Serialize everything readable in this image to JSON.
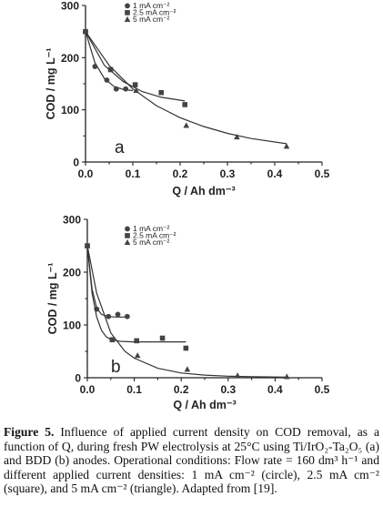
{
  "chart_data": [
    {
      "type": "scatter",
      "panel_label": "a",
      "xlabel": "Q / Ah dm⁻³",
      "ylabel": "COD / mg L⁻¹",
      "xlim": [
        0.0,
        0.5
      ],
      "ylim": [
        0,
        300
      ],
      "xticks": [
        "0.0",
        "0.1",
        "0.2",
        "0.3",
        "0.4",
        "0.5"
      ],
      "yticks": [
        "0",
        "100",
        "200",
        "300"
      ],
      "grid": false,
      "legend_position": "top-center",
      "series": [
        {
          "name": "1 mA cm⁻²",
          "marker": "circle",
          "x": [
            0.0,
            0.02,
            0.045,
            0.065,
            0.085
          ],
          "y": [
            250,
            183,
            157,
            140,
            140
          ],
          "fit_x": [
            0.0,
            0.02,
            0.04,
            0.06,
            0.08,
            0.1
          ],
          "fit_y": [
            250,
            190,
            160,
            145,
            139,
            137
          ]
        },
        {
          "name": "2.5 mA cm⁻²",
          "marker": "square",
          "x": [
            0.0,
            0.053,
            0.105,
            0.16,
            0.21
          ],
          "y": [
            250,
            177,
            148,
            133,
            110
          ],
          "fit_x": [
            0.0,
            0.04,
            0.08,
            0.12,
            0.16,
            0.21
          ],
          "fit_y": [
            250,
            185,
            154,
            135,
            124,
            117
          ]
        },
        {
          "name": "5 mA cm⁻²",
          "marker": "triangle",
          "x": [
            0.0,
            0.107,
            0.213,
            0.32,
            0.425
          ],
          "y": [
            250,
            137,
            70,
            48,
            30
          ],
          "fit_x": [
            0.0,
            0.05,
            0.1,
            0.15,
            0.2,
            0.25,
            0.3,
            0.35,
            0.425
          ],
          "fit_y": [
            250,
            185,
            140,
            108,
            85,
            68,
            55,
            45,
            35
          ]
        }
      ]
    },
    {
      "type": "scatter",
      "panel_label": "b",
      "xlabel": "Q / Ah dm⁻³",
      "ylabel": "COD / mg L⁻¹",
      "xlim": [
        0.0,
        0.5
      ],
      "ylim": [
        0,
        300
      ],
      "xticks": [
        "0.0",
        "0.1",
        "0.2",
        "0.3",
        "0.4",
        "0.5"
      ],
      "yticks": [
        "0",
        "100",
        "200",
        "300"
      ],
      "grid": false,
      "legend_position": "top-center",
      "series": [
        {
          "name": "1 mA cm⁻²",
          "marker": "circle",
          "x": [
            0.0,
            0.02,
            0.045,
            0.065,
            0.085
          ],
          "y": [
            250,
            130,
            116,
            120,
            116
          ],
          "fit_x": [
            0.0,
            0.01,
            0.02,
            0.03,
            0.045,
            0.06,
            0.085
          ],
          "fit_y": [
            250,
            168,
            132,
            120,
            116,
            115,
            115
          ]
        },
        {
          "name": "2.5 mA cm⁻²",
          "marker": "square",
          "x": [
            0.0,
            0.053,
            0.105,
            0.16,
            0.21
          ],
          "y": [
            250,
            72,
            70,
            75,
            56
          ],
          "fit_x": [
            0.0,
            0.01,
            0.02,
            0.03,
            0.04,
            0.05,
            0.07,
            0.1,
            0.15,
            0.21
          ],
          "fit_y": [
            250,
            160,
            115,
            90,
            78,
            72,
            69,
            68,
            68,
            68
          ]
        },
        {
          "name": "5 mA cm⁻²",
          "marker": "triangle",
          "x": [
            0.0,
            0.107,
            0.213,
            0.32,
            0.425
          ],
          "y": [
            250,
            42,
            16,
            4,
            2
          ],
          "fit_x": [
            0.0,
            0.02,
            0.05,
            0.08,
            0.1,
            0.15,
            0.2,
            0.25,
            0.3,
            0.35,
            0.425
          ],
          "fit_y": [
            250,
            160,
            85,
            50,
            37,
            18,
            9,
            5,
            3,
            2,
            1
          ]
        }
      ]
    }
  ],
  "caption": {
    "label": "Figure 5.",
    "text": "Influence of applied current density on COD removal, as a function of Q, during fresh PW electrolysis at 25°C using Ti/IrO₂-Ta₂O₅ (a) and BDD (b) anodes. Operational conditions: Flow rate = 160 dm³ h⁻¹ and different applied current densities: 1 mA cm⁻² (circle), 2.5 mA cm⁻² (square), and 5 mA cm⁻² (triangle). Adapted from [19]."
  }
}
